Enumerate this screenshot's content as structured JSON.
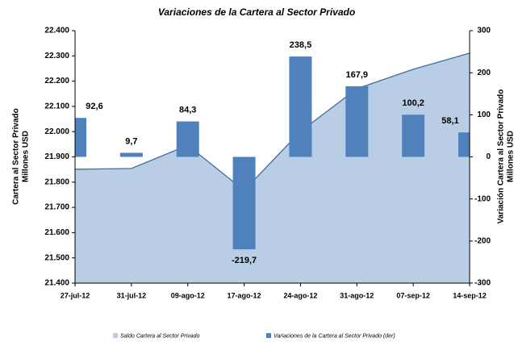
{
  "chart_data": {
    "type": "bar-area",
    "title": "Variaciones de la Cartera al Sector Privado",
    "y_label": [
      "Cartera al Sector Privado",
      "Millones USD"
    ],
    "y2_label": [
      "Variación Cartera al Sector Privado",
      "Millones USD"
    ],
    "categories": [
      "27-jul-12",
      "31-jul-12",
      "09-ago-12",
      "17-ago-12",
      "24-ago-12",
      "31-ago-12",
      "07-sep-12",
      "14-sep-12"
    ],
    "series": [
      {
        "name": "Saldo Cartera al Sector Privado",
        "type": "area",
        "color": "#b9cde5",
        "line_color": "#3e6ea5",
        "values": [
          21851,
          21854,
          21946,
          21767,
          22001,
          22170,
          22247,
          22311
        ]
      },
      {
        "name": "Variaciones de la Cartera al Sector Privado (der)",
        "type": "bar",
        "axis": "y2",
        "color": "#4f81bd",
        "values": [
          92.6,
          9.7,
          84.3,
          -219.7,
          238.5,
          167.9,
          100.2,
          58.1
        ],
        "value_labels": [
          "92,6",
          "9,7",
          "84,3",
          "-219,7",
          "238,5",
          "167,9",
          "100,2",
          "58,1"
        ]
      }
    ],
    "ylim": [
      21400,
      22400
    ],
    "yticks": [
      {
        "value": 21400,
        "label": "21.400"
      },
      {
        "value": 21500,
        "label": "21.500"
      },
      {
        "value": 21600,
        "label": "21.600"
      },
      {
        "value": 21700,
        "label": "21.700"
      },
      {
        "value": 21800,
        "label": "21.800"
      },
      {
        "value": 21900,
        "label": "21.900"
      },
      {
        "value": 22000,
        "label": "22.000"
      },
      {
        "value": 22100,
        "label": "22.100"
      },
      {
        "value": 22200,
        "label": "22.200"
      },
      {
        "value": 22300,
        "label": "22.300"
      },
      {
        "value": 22400,
        "label": "22.400"
      }
    ],
    "y2lim": [
      -300,
      300
    ],
    "y2ticks": [
      -300,
      -200,
      -100,
      0,
      100,
      200,
      300
    ],
    "grid": false,
    "legend": "bottom"
  }
}
